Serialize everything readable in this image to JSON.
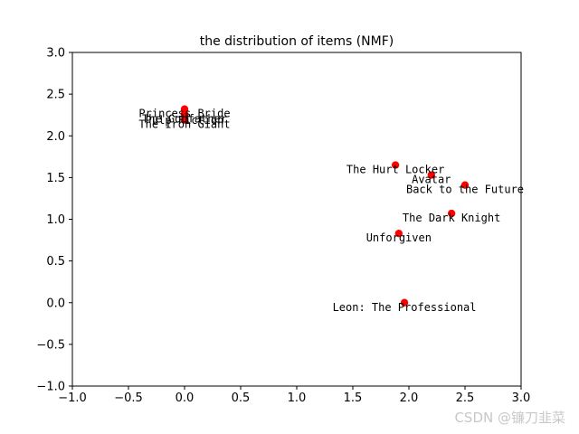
{
  "watermark": "CSDN @镰刀韭菜",
  "chart_data": {
    "type": "scatter",
    "title": "the distribution of items (NMF)",
    "xlabel": "",
    "ylabel": "",
    "xlim": [
      -1.0,
      3.0
    ],
    "ylim": [
      -1.0,
      3.0
    ],
    "xticks": [
      "−1.0",
      "−0.5",
      "0.0",
      "0.5",
      "1.0",
      "1.5",
      "2.0",
      "2.5",
      "3.0"
    ],
    "xtick_values": [
      -1.0,
      -0.5,
      0.0,
      0.5,
      1.0,
      1.5,
      2.0,
      2.5,
      3.0
    ],
    "yticks": [
      "−1.0",
      "−0.5",
      "0.0",
      "0.5",
      "1.0",
      "1.5",
      "2.0",
      "2.5",
      "3.0"
    ],
    "ytick_values": [
      -1.0,
      -0.5,
      0.0,
      0.5,
      1.0,
      1.5,
      2.0,
      2.5,
      3.0
    ],
    "grid": false,
    "marker_color": "#ff0000",
    "points": [
      {
        "label": "Princess Bride",
        "x": 0.0,
        "y": 2.32
      },
      {
        "label": "The Godfather",
        "x": 0.0,
        "y": 2.26
      },
      {
        "label": "Pulp Fiction",
        "x": 0.0,
        "y": 2.24
      },
      {
        "label": "The Iron Giant",
        "x": 0.0,
        "y": 2.19
      },
      {
        "label": "The Hurt Locker",
        "x": 1.88,
        "y": 1.65
      },
      {
        "label": "Avatar",
        "x": 2.2,
        "y": 1.53
      },
      {
        "label": "Back to the Future",
        "x": 2.5,
        "y": 1.41
      },
      {
        "label": "The Dark Knight",
        "x": 2.38,
        "y": 1.07
      },
      {
        "label": "Unforgiven",
        "x": 1.91,
        "y": 0.83
      },
      {
        "label": "Leon: The Professional",
        "x": 1.96,
        "y": 0.0
      }
    ]
  }
}
